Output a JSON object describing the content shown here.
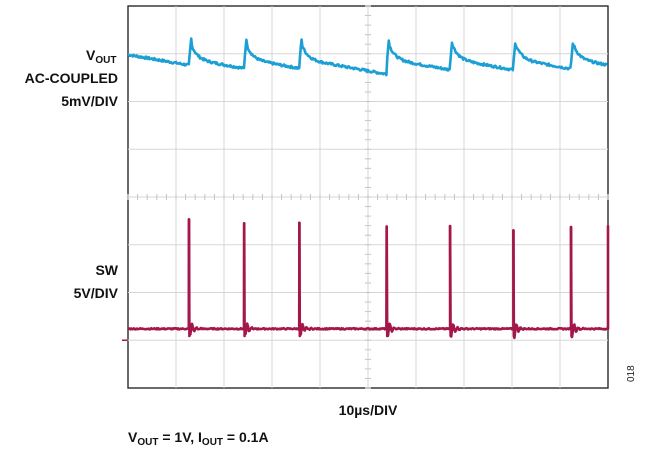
{
  "chart_data": {
    "type": "line",
    "grid": true,
    "x_divisions": 10,
    "y_divisions": 8,
    "xlabel": "10µs/DIV",
    "series": [
      {
        "label_main": "V",
        "label_sub": "OUT",
        "label_line2": "AC-COUPLED",
        "label_line3": "5mV/DIV",
        "color": "#1b9fd4",
        "baseline_div": 6.8,
        "pulse_x_div": [
          1.27,
          2.42,
          3.57,
          5.39,
          6.71,
          8.03,
          9.23,
          10.0
        ],
        "pulse_amplitude_div": 0.55
      },
      {
        "label_main": "SW",
        "label_line2": "5V/DIV",
        "color": "#a3174a",
        "baseline_div": 1.24,
        "spike_x_div": [
          1.27,
          2.42,
          3.57,
          5.39,
          6.71,
          8.03,
          9.23,
          10.0
        ],
        "spike_top_div": [
          3.53,
          3.45,
          3.46,
          3.38,
          3.39,
          3.3,
          3.37,
          3.39
        ]
      }
    ],
    "ground_marker_div": 1.0,
    "caption": {
      "vout_main": "V",
      "vout_sub": "OUT",
      "vout_value": " = 1V, I",
      "iout_sub": "OUT",
      "iout_value": " = 0.1A"
    },
    "figure_id": "018"
  }
}
